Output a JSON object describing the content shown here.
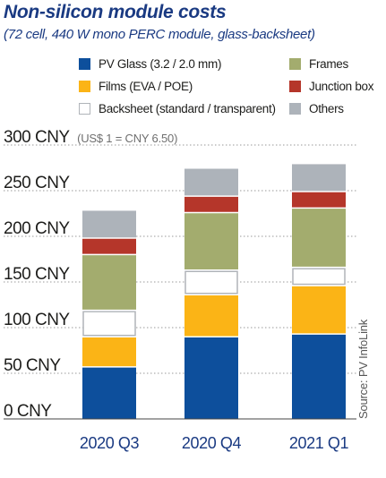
{
  "chart_data": {
    "type": "bar",
    "stacked": true,
    "title": "Non-silicon module costs",
    "subtitle": "(72 cell, 440 W mono PERC module, glass-backsheet)",
    "ylabel_note": "(US$ 1 = CNY 6.50)",
    "unit": "CNY",
    "ylim": [
      0,
      300
    ],
    "yticks": [
      0,
      50,
      100,
      150,
      200,
      250,
      300
    ],
    "ytick_labels": [
      "0 CNY",
      "50 CNY",
      "100 CNY",
      "150 CNY",
      "200 CNY",
      "250 CNY",
      "300 CNY"
    ],
    "categories": [
      "2020 Q3",
      "2020 Q4",
      "2021 Q1"
    ],
    "series": [
      {
        "name": "PV Glass (3.2 / 2.0 mm)",
        "color": "#0d4f9c",
        "values": [
          57,
          90,
          93
        ]
      },
      {
        "name": "Films (EVA / POE)",
        "color": "#fbb416",
        "values": [
          33,
          46,
          53
        ]
      },
      {
        "name": "Backsheet (standard / transparent)",
        "color": "#ffffff",
        "stroke": "#b0b4b9",
        "values": [
          29,
          27,
          20
        ]
      },
      {
        "name": "Frames",
        "color": "#a3ac6e",
        "values": [
          61,
          63,
          65
        ]
      },
      {
        "name": "Junction box",
        "color": "#b5362a",
        "values": [
          18,
          18,
          18
        ]
      },
      {
        "name": "Others",
        "color": "#adb3ba",
        "values": [
          30,
          30,
          30
        ]
      }
    ],
    "source": "Source: PV InfoLink",
    "legend": "top"
  }
}
